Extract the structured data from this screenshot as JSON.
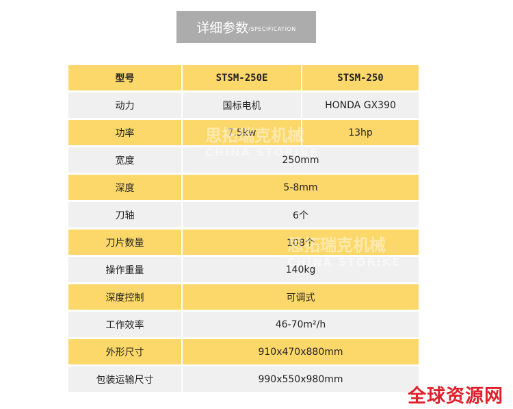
{
  "header": {
    "title": "详细参数",
    "subtitle": "/SPECIFICATION"
  },
  "table": {
    "rows": [
      {
        "cells": [
          "型号",
          "STSM-250E",
          "STSM-250"
        ],
        "style": "yellow"
      },
      {
        "cells": [
          "动力",
          "国标电机",
          "HONDA GX390"
        ],
        "style": "gray"
      },
      {
        "cells": [
          "功率",
          "7.5kw",
          "13hp"
        ],
        "style": "yellow"
      },
      {
        "cells": [
          "宽度",
          "250mm"
        ],
        "style": "gray"
      },
      {
        "cells": [
          "深度",
          "5-8mm"
        ],
        "style": "yellow"
      },
      {
        "cells": [
          "刀轴",
          "6个"
        ],
        "style": "gray"
      },
      {
        "cells": [
          "刀片数量",
          "108个"
        ],
        "style": "yellow"
      },
      {
        "cells": [
          "操作重量",
          "140kg"
        ],
        "style": "gray"
      },
      {
        "cells": [
          "深度控制",
          "可调式"
        ],
        "style": "yellow"
      },
      {
        "cells": [
          "工作效率",
          "46-70m²/h"
        ],
        "style": "gray"
      },
      {
        "cells": [
          "外形尺寸",
          "910x470x880mm"
        ],
        "style": "yellow"
      },
      {
        "cells": [
          "包装运输尺寸",
          "990x550x980mm"
        ],
        "style": "gray"
      }
    ]
  },
  "watermark": {
    "cn": "思拓瑞克机械",
    "en": "CHINA STORIKE"
  },
  "brand": "全球资源网",
  "colors": {
    "yellow": "#fcd86a",
    "gray": "#f0f0f0",
    "header_bg": "#acacac",
    "brand": "#e0202a"
  }
}
